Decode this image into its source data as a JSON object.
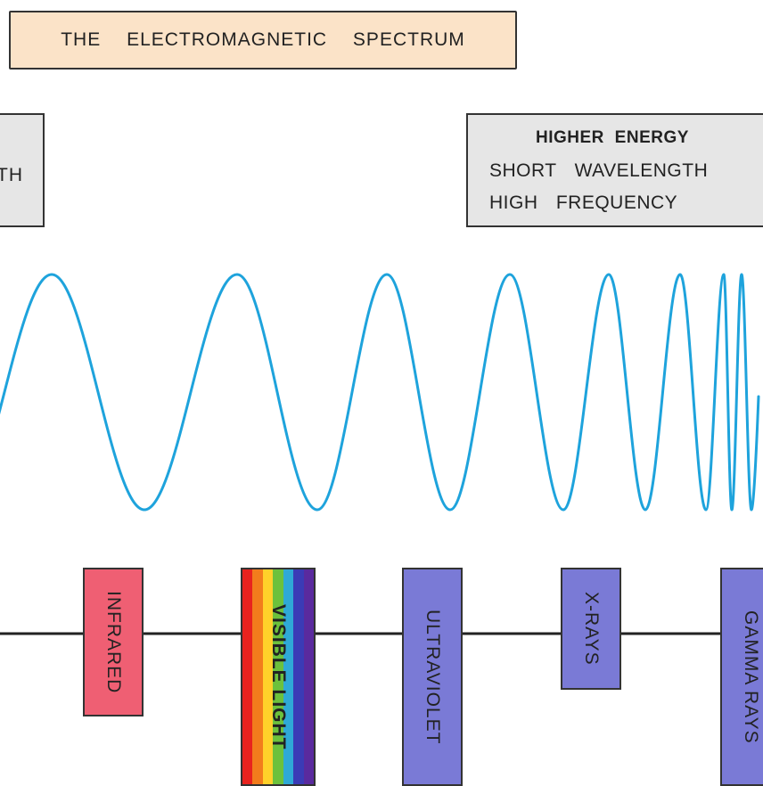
{
  "title": "THE ELECTROMAGNETIC SPECTRUM",
  "left_box": {
    "visible_fragment": "TH"
  },
  "right_box": {
    "line1": "HIGHER ENERGY",
    "line2": "SHORT WAVELENGTH",
    "line3": "HIGH FREQUENCY"
  },
  "bands": {
    "infrared": "INFRARED",
    "visible": "VISIBLE LIGHT",
    "ultraviolet": "ULTRAVIOLET",
    "xrays": "X-RAYS",
    "gamma": "GAMMA RAYS"
  },
  "colors": {
    "wave": "#1ea3dc",
    "infrared": "#ef5f73",
    "band": "#7a7ad6",
    "title_bg": "#fbe3c8",
    "info_bg": "#e6e6e6",
    "rainbow": [
      "#e8231e",
      "#f27c1c",
      "#ffd12a",
      "#6cc13c",
      "#2fa9d6",
      "#3b3bb6",
      "#5a2a9e"
    ]
  }
}
